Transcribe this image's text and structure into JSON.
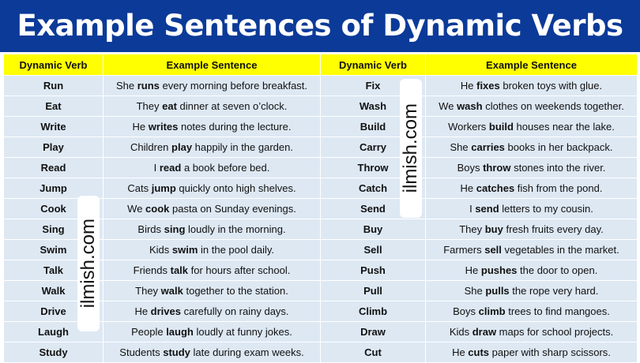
{
  "title": "Example Sentences of Dynamic Verbs",
  "headers": [
    "Dynamic Verb",
    "Example Sentence",
    "Dynamic Verb",
    "Example Sentence"
  ],
  "rows": [
    {
      "a": {
        "verb": "Run",
        "pre": "She ",
        "b": "runs",
        "post": " every morning before breakfast."
      },
      "b": {
        "verb": "Fix",
        "pre": "He ",
        "b": "fixes",
        "post": " broken toys with glue."
      }
    },
    {
      "a": {
        "verb": "Eat",
        "pre": "They ",
        "b": "eat",
        "post": " dinner at seven o’clock."
      },
      "b": {
        "verb": "Wash",
        "pre": "We ",
        "b": "wash",
        "post": " clothes on weekends together."
      }
    },
    {
      "a": {
        "verb": "Write",
        "pre": "He ",
        "b": "writes",
        "post": " notes during the lecture."
      },
      "b": {
        "verb": "Build",
        "pre": "Workers ",
        "b": "build",
        "post": " houses near the lake."
      }
    },
    {
      "a": {
        "verb": "Play",
        "pre": "Children ",
        "b": "play",
        "post": " happily in the garden."
      },
      "b": {
        "verb": "Carry",
        "pre": "She ",
        "b": "carries",
        "post": " books in her backpack."
      }
    },
    {
      "a": {
        "verb": "Read",
        "pre": "I ",
        "b": "read",
        "post": " a book before bed."
      },
      "b": {
        "verb": "Throw",
        "pre": "Boys ",
        "b": "throw",
        "post": " stones into the river."
      }
    },
    {
      "a": {
        "verb": "Jump",
        "pre": "Cats ",
        "b": "jump",
        "post": " quickly onto high shelves."
      },
      "b": {
        "verb": "Catch",
        "pre": "He ",
        "b": "catches",
        "post": " fish from the pond."
      }
    },
    {
      "a": {
        "verb": "Cook",
        "pre": "We ",
        "b": "cook",
        "post": " pasta on Sunday evenings."
      },
      "b": {
        "verb": "Send",
        "pre": "I ",
        "b": "send",
        "post": " letters to my cousin."
      }
    },
    {
      "a": {
        "verb": "Sing",
        "pre": "Birds ",
        "b": "sing",
        "post": " loudly in the morning."
      },
      "b": {
        "verb": "Buy",
        "pre": "They ",
        "b": "buy",
        "post": " fresh fruits every day."
      }
    },
    {
      "a": {
        "verb": "Swim",
        "pre": "Kids ",
        "b": "swim",
        "post": " in the pool daily."
      },
      "b": {
        "verb": "Sell",
        "pre": "Farmers ",
        "b": "sell",
        "post": " vegetables in the market."
      }
    },
    {
      "a": {
        "verb": "Talk",
        "pre": "Friends ",
        "b": "talk",
        "post": " for hours after school."
      },
      "b": {
        "verb": "Push",
        "pre": "He ",
        "b": "pushes",
        "post": " the door to open."
      }
    },
    {
      "a": {
        "verb": "Walk",
        "pre": "They ",
        "b": "walk",
        "post": " together to the station."
      },
      "b": {
        "verb": "Pull",
        "pre": "She ",
        "b": "pulls",
        "post": " the rope very hard."
      }
    },
    {
      "a": {
        "verb": "Drive",
        "pre": "He ",
        "b": "drives",
        "post": " carefully on rainy days."
      },
      "b": {
        "verb": "Climb",
        "pre": "Boys ",
        "b": "climb",
        "post": " trees to find mangoes."
      }
    },
    {
      "a": {
        "verb": "Laugh",
        "pre": "People ",
        "b": "laugh",
        "post": " loudly at funny jokes."
      },
      "b": {
        "verb": "Draw",
        "pre": "Kids ",
        "b": "draw",
        "post": " maps for school projects."
      }
    },
    {
      "a": {
        "verb": "Study",
        "pre": "Students ",
        "b": "study",
        "post": " late during exam weeks."
      },
      "b": {
        "verb": "Cut",
        "pre": "He ",
        "b": "cuts",
        "post": " paper with sharp scissors."
      }
    }
  ],
  "watermark": "ilmish.com",
  "colors": {
    "title_bg": "#0b3a98",
    "header_bg": "#ffff00",
    "row_bg": "#dde8f3"
  }
}
